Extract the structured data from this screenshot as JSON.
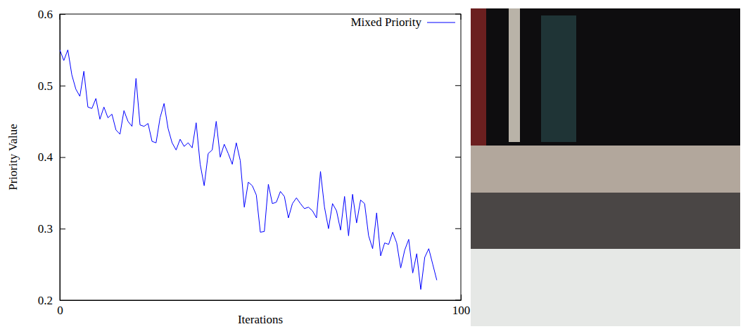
{
  "chart_data": {
    "type": "line",
    "x_label": "Iterations",
    "y_label": "Priority Value",
    "x": [
      0,
      1,
      2,
      3,
      4,
      5,
      6,
      7,
      8,
      9,
      10,
      11,
      12,
      13,
      14,
      15,
      16,
      17,
      18,
      19,
      20,
      21,
      22,
      23,
      24,
      25,
      26,
      27,
      28,
      29,
      30,
      31,
      32,
      33,
      34,
      35,
      36,
      37,
      38,
      39,
      40,
      41,
      42,
      43,
      44,
      45,
      46,
      47,
      48,
      49,
      50,
      51,
      52,
      53,
      54,
      55,
      56,
      57,
      58,
      59,
      60,
      61,
      62,
      63,
      64,
      65,
      66,
      67,
      68,
      69,
      70,
      71,
      72,
      73,
      74,
      75,
      76,
      77,
      78,
      79,
      80,
      81,
      82,
      83,
      84,
      85,
      86,
      87,
      88,
      89,
      90,
      91,
      92,
      93,
      94
    ],
    "series": [
      {
        "name": "Mixed Priority",
        "color": "#0000ff",
        "values": [
          0.55,
          0.535,
          0.55,
          0.515,
          0.495,
          0.485,
          0.52,
          0.47,
          0.468,
          0.482,
          0.453,
          0.47,
          0.455,
          0.46,
          0.438,
          0.432,
          0.465,
          0.45,
          0.443,
          0.51,
          0.445,
          0.443,
          0.447,
          0.422,
          0.42,
          0.455,
          0.475,
          0.44,
          0.42,
          0.41,
          0.425,
          0.415,
          0.42,
          0.413,
          0.448,
          0.39,
          0.36,
          0.405,
          0.41,
          0.45,
          0.4,
          0.418,
          0.405,
          0.39,
          0.42,
          0.395,
          0.33,
          0.365,
          0.36,
          0.347,
          0.295,
          0.296,
          0.362,
          0.335,
          0.337,
          0.352,
          0.345,
          0.315,
          0.335,
          0.343,
          0.335,
          0.328,
          0.33,
          0.325,
          0.315,
          0.38,
          0.33,
          0.3,
          0.335,
          0.325,
          0.298,
          0.345,
          0.29,
          0.348,
          0.308,
          0.34,
          0.335,
          0.29,
          0.272,
          0.322,
          0.262,
          0.28,
          0.278,
          0.295,
          0.28,
          0.245,
          0.27,
          0.285,
          0.238,
          0.265,
          0.215,
          0.26,
          0.272,
          0.25,
          0.228
        ]
      }
    ],
    "xlim": [
      0,
      100
    ],
    "xticks": [
      0,
      100
    ],
    "ylim": [
      0.2,
      0.6
    ],
    "yticks": [
      0.2,
      0.3,
      0.4,
      0.5,
      0.6
    ],
    "legend": "top-right",
    "grid": false
  }
}
